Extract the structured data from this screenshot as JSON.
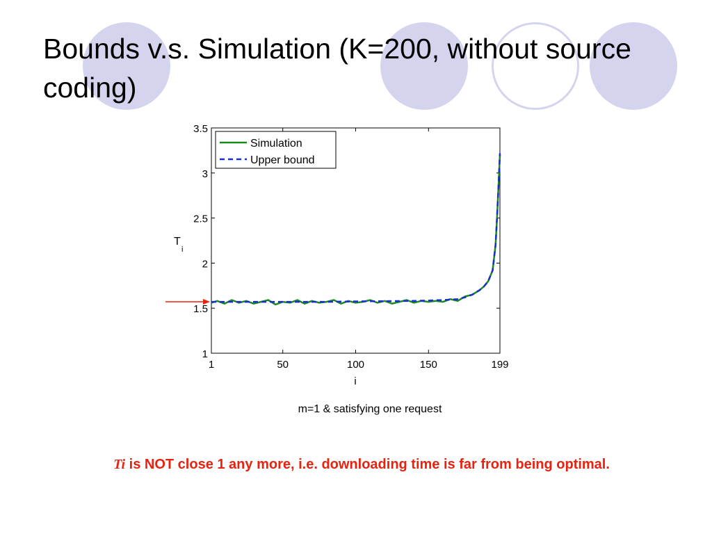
{
  "slide": {
    "title": "Bounds v.s. Simulation (K=200, without source coding)",
    "caption": "m=1 & satisfying one request",
    "note_symbol": "Ti",
    "note_text": " is NOT close 1 any more, i.e. downloading time is far from being optimal.",
    "accent_color": "#e8220e",
    "decoration_color": "#d4d4ee"
  },
  "chart_data": {
    "type": "line",
    "xlabel": "i",
    "ylabel": "T",
    "ylabel_subscript": "i",
    "xlim": [
      1,
      199
    ],
    "ylim": [
      1,
      3.5
    ],
    "xticks": [
      1,
      50,
      100,
      150,
      199
    ],
    "yticks": [
      1,
      1.5,
      2,
      2.5,
      3,
      3.5
    ],
    "xtick_labels": [
      "1",
      "50",
      "100",
      "150",
      "199"
    ],
    "ytick_labels": [
      "1",
      "1.5",
      "2",
      "2.5",
      "3",
      "3.5"
    ],
    "grid": false,
    "legend_position": "top-left",
    "annotation": "red arrow pointing at T = 1.57 on the y-axis",
    "series": [
      {
        "name": "Simulation",
        "color": "#1a8a1a",
        "style": "solid",
        "x": [
          1,
          5,
          10,
          15,
          20,
          25,
          30,
          35,
          40,
          45,
          50,
          55,
          60,
          65,
          70,
          75,
          80,
          85,
          90,
          95,
          100,
          105,
          110,
          115,
          120,
          125,
          130,
          135,
          140,
          145,
          150,
          155,
          160,
          165,
          170,
          175,
          180,
          185,
          188,
          191,
          194,
          196,
          197,
          198,
          199
        ],
        "y": [
          1.56,
          1.58,
          1.55,
          1.59,
          1.56,
          1.58,
          1.55,
          1.57,
          1.59,
          1.54,
          1.57,
          1.56,
          1.59,
          1.55,
          1.58,
          1.56,
          1.57,
          1.59,
          1.55,
          1.58,
          1.56,
          1.57,
          1.59,
          1.56,
          1.58,
          1.55,
          1.57,
          1.59,
          1.56,
          1.58,
          1.57,
          1.58,
          1.57,
          1.6,
          1.58,
          1.63,
          1.65,
          1.7,
          1.74,
          1.8,
          1.92,
          2.2,
          2.5,
          2.85,
          3.2
        ]
      },
      {
        "name": "Upper bound",
        "color": "#1a2ecc",
        "style": "dashed",
        "x": [
          1,
          20,
          40,
          60,
          80,
          100,
          120,
          140,
          150,
          160,
          170,
          175,
          180,
          185,
          188,
          191,
          194,
          196,
          197,
          198,
          199
        ],
        "y": [
          1.57,
          1.57,
          1.57,
          1.57,
          1.57,
          1.575,
          1.578,
          1.58,
          1.585,
          1.59,
          1.6,
          1.62,
          1.65,
          1.7,
          1.74,
          1.8,
          1.92,
          2.2,
          2.5,
          2.85,
          3.22
        ]
      }
    ]
  }
}
